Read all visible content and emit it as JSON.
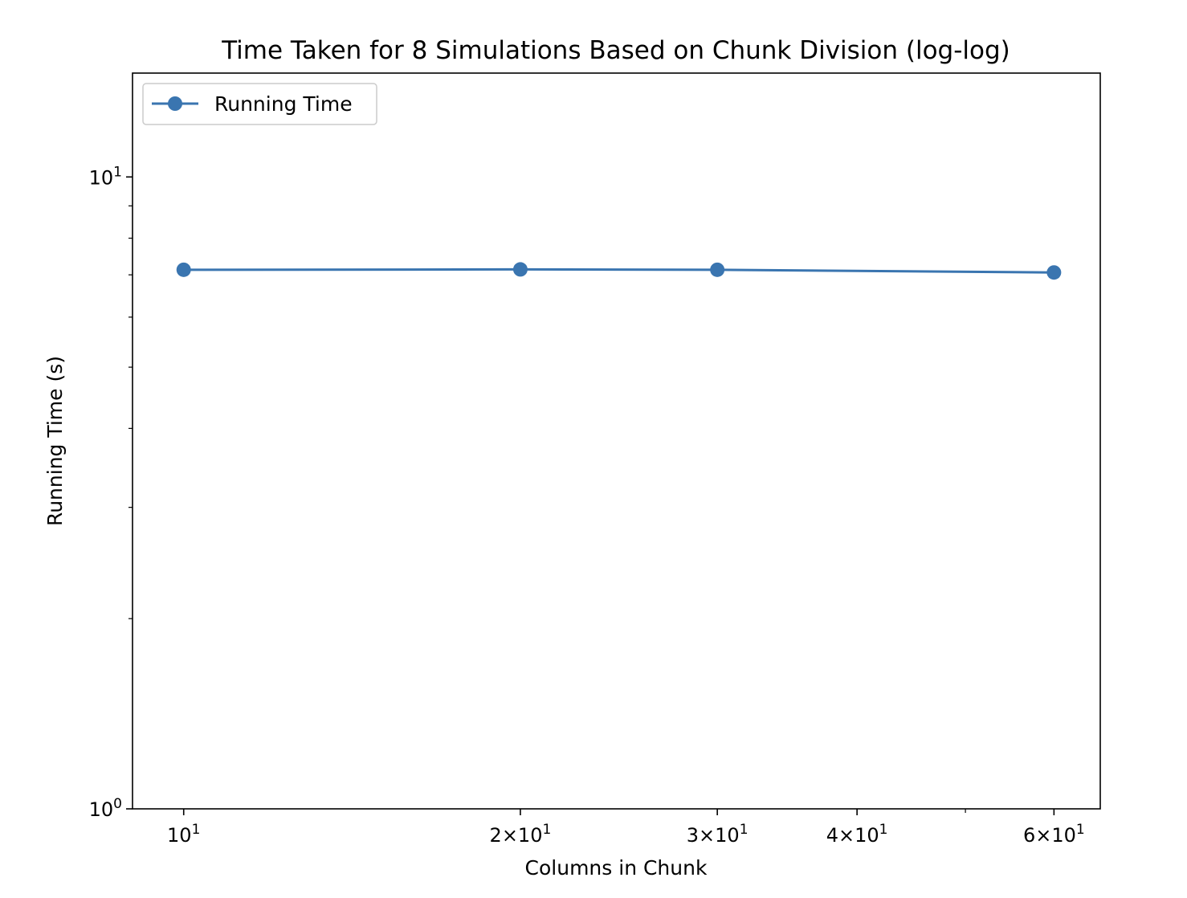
{
  "chart_data": {
    "type": "line",
    "title": "Time Taken for 8 Simulations Based on Chunk Division (log-log)",
    "xlabel": "Columns in Chunk",
    "ylabel": "Running Time (s)",
    "xscale": "log",
    "yscale": "log",
    "xlim": [
      9.0,
      66.0
    ],
    "ylim": [
      1.0,
      14.6
    ],
    "grid": false,
    "legend_position": "upper left",
    "x_ticks": [
      {
        "value": 10,
        "mantissa": "",
        "exp": "1"
      },
      {
        "value": 20,
        "mantissa": "2",
        "exp": "1"
      },
      {
        "value": 30,
        "mantissa": "3",
        "exp": "1"
      },
      {
        "value": 40,
        "mantissa": "4",
        "exp": "1"
      },
      {
        "value": 60,
        "mantissa": "6",
        "exp": "1"
      }
    ],
    "x_minor_ticks": [
      50
    ],
    "y_ticks": [
      {
        "value": 1,
        "mantissa": "",
        "exp": "0"
      },
      {
        "value": 10,
        "mantissa": "",
        "exp": "1"
      }
    ],
    "y_minor_ticks": [
      2,
      3,
      4,
      5,
      6,
      7,
      8,
      9
    ],
    "series": [
      {
        "name": "Running Time",
        "color": "#3a75b0",
        "marker": "circle",
        "x": [
          10,
          20,
          30,
          60
        ],
        "y": [
          7.13,
          7.14,
          7.13,
          7.06
        ]
      }
    ]
  }
}
